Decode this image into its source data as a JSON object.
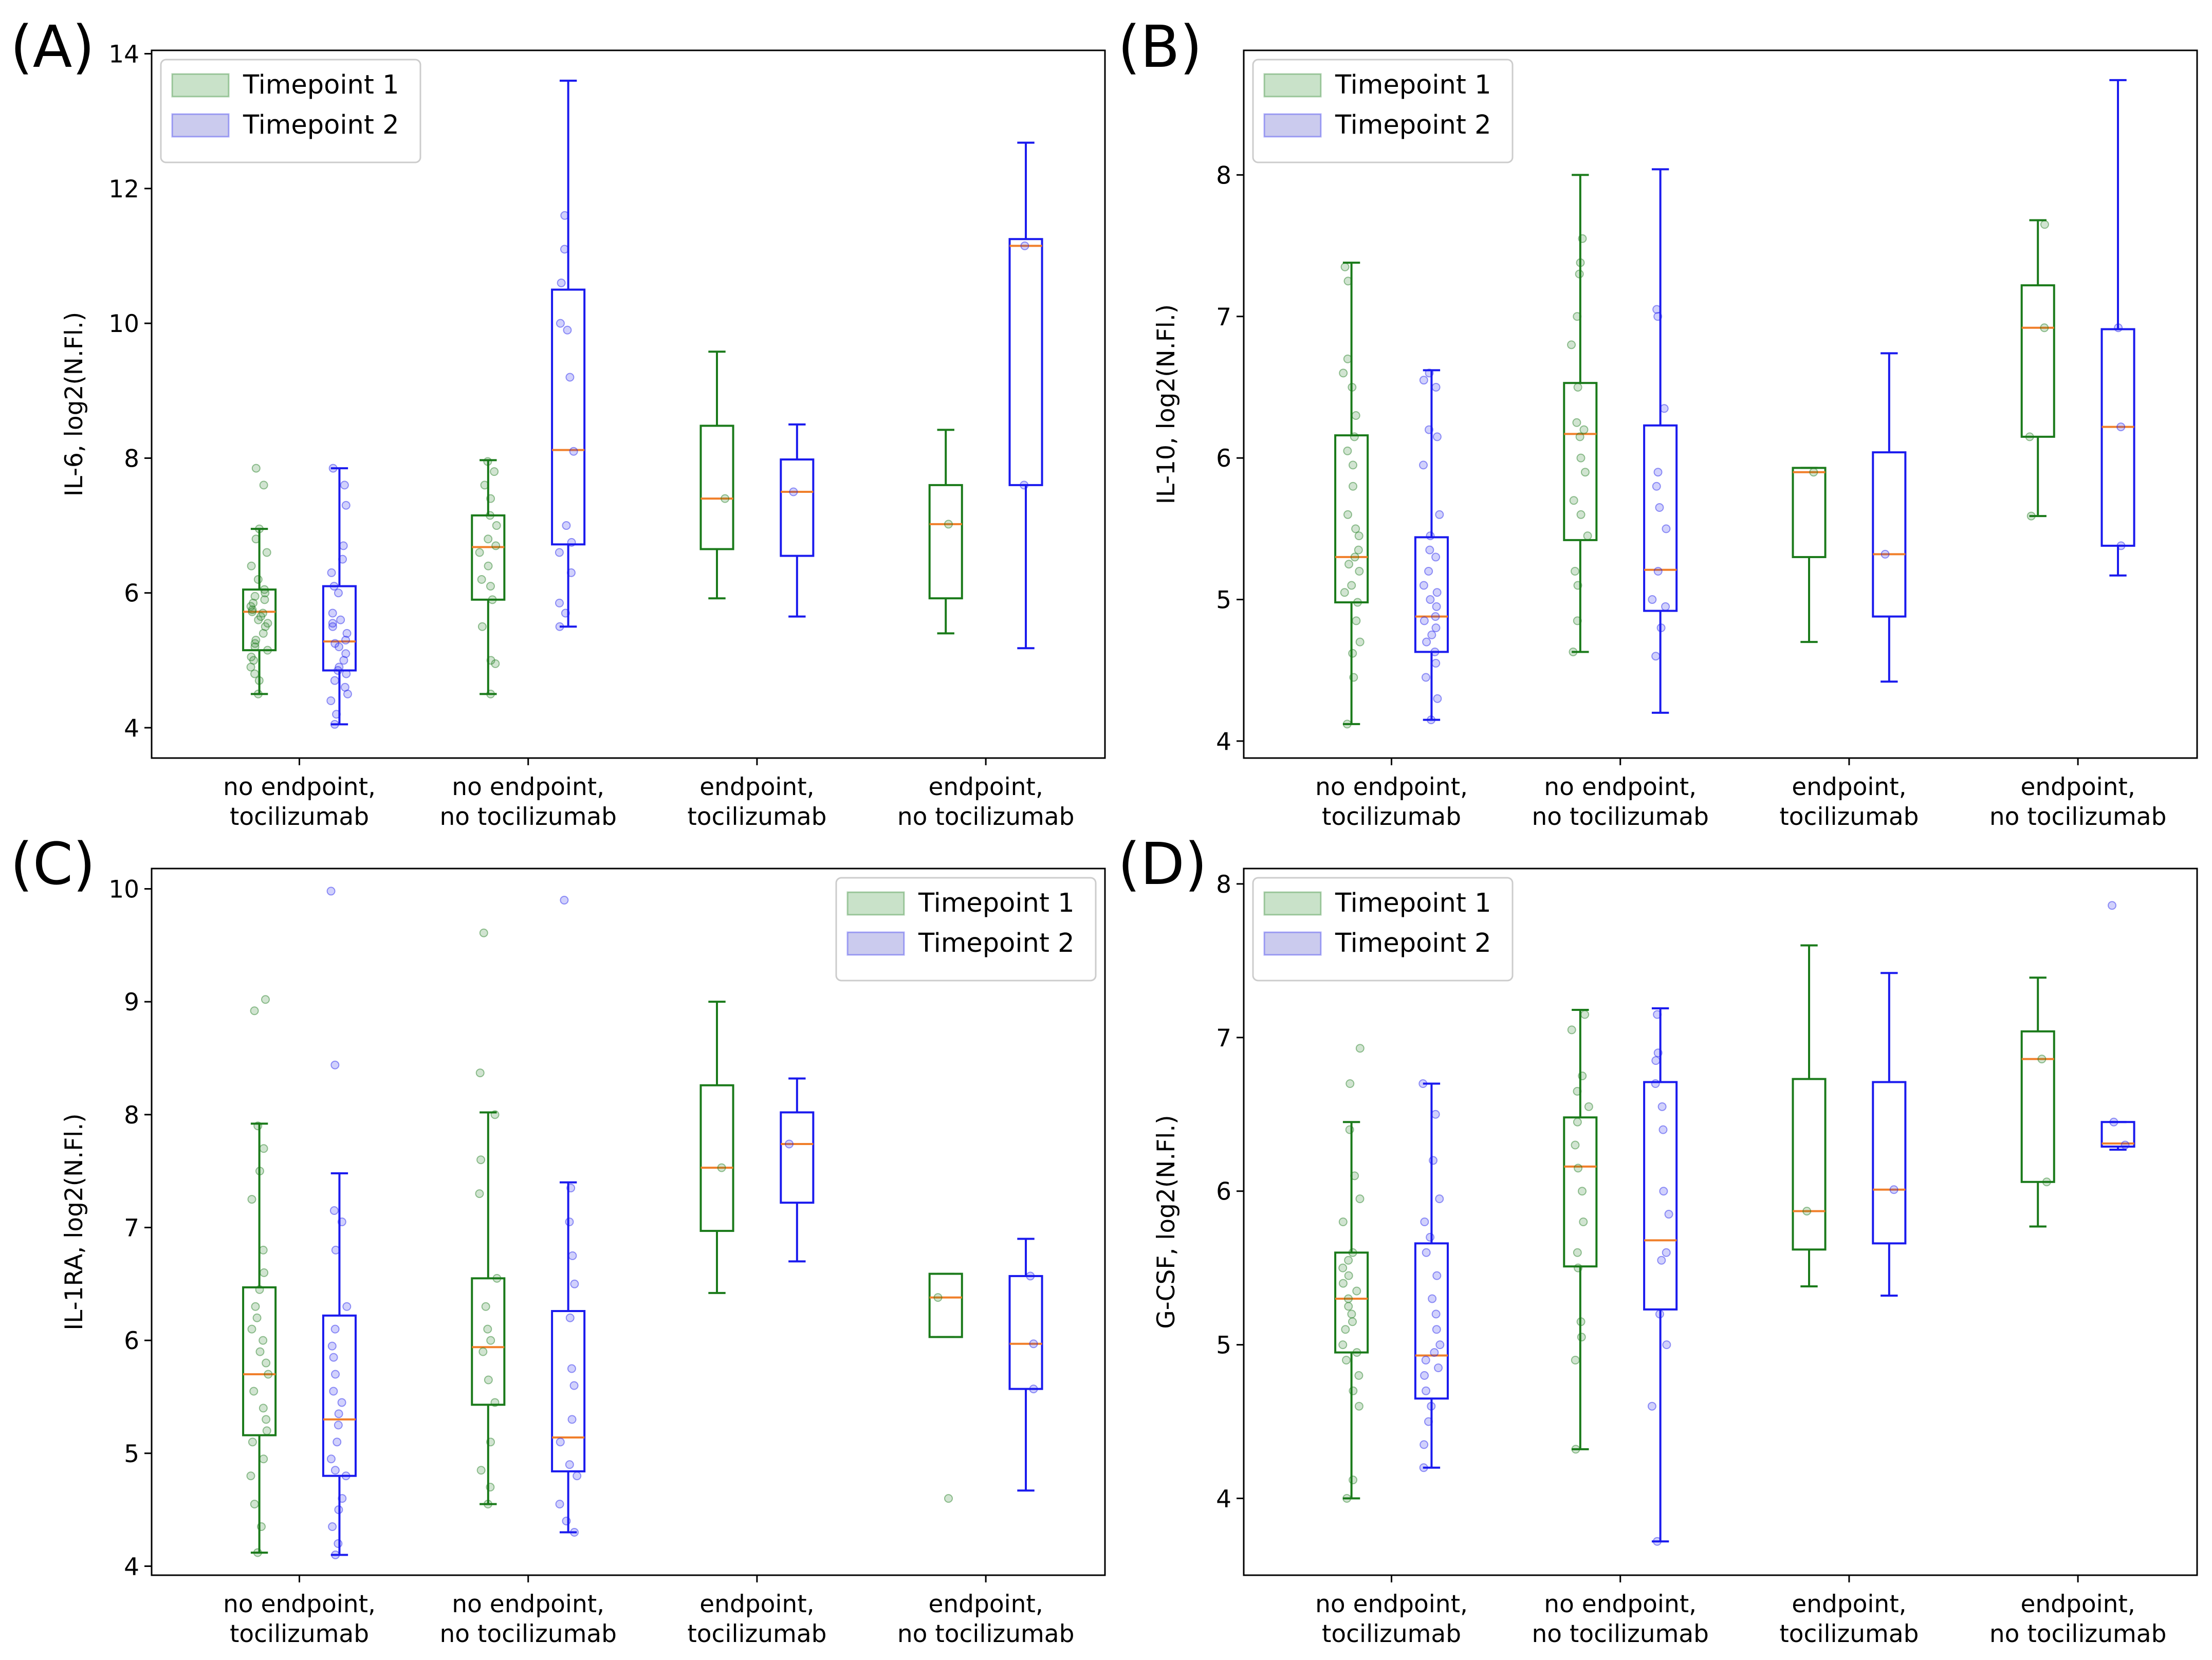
{
  "colors": {
    "timepoint1": "#1a7a1a",
    "timepoint2": "#1a1aee",
    "timepoint1_fill": "#c9e2c9",
    "timepoint2_fill": "#cbcbee",
    "median": "#f07f2a",
    "frame": "#000000"
  },
  "chart_data": [
    {
      "type": "box",
      "panel_label": "(A)",
      "ylabel": "IL-6, log2(N.Fl.)",
      "ylim": [
        3.55,
        14.05
      ],
      "yticks": [
        4,
        6,
        8,
        10,
        12,
        14
      ],
      "categories": [
        "no endpoint,\ntocilizumab",
        "no endpoint,\nno tocilizumab",
        "endpoint,\ntocilizumab",
        "endpoint,\nno tocilizumab"
      ],
      "legend": {
        "position": "upper-left",
        "entries": [
          "Timepoint 1",
          "Timepoint 2"
        ]
      },
      "series": [
        {
          "name": "Timepoint 1",
          "boxes": [
            {
              "whislo": 4.5,
              "q1": 5.15,
              "med": 5.72,
              "q3": 6.05,
              "whishi": 6.95,
              "fliers": [
                7.85,
                7.6
              ],
              "points": [
                4.5,
                4.7,
                4.8,
                4.9,
                5.0,
                5.05,
                5.15,
                5.2,
                5.25,
                5.3,
                5.4,
                5.5,
                5.55,
                5.6,
                5.65,
                5.7,
                5.72,
                5.75,
                5.8,
                5.85,
                5.9,
                5.95,
                6.0,
                6.05,
                6.2,
                6.4,
                6.6,
                6.8,
                6.95,
                7.6,
                7.85
              ]
            },
            {
              "whislo": 4.5,
              "q1": 5.9,
              "med": 6.68,
              "q3": 7.15,
              "whishi": 7.97,
              "points": [
                4.5,
                4.95,
                5.0,
                5.5,
                5.9,
                6.1,
                6.2,
                6.4,
                6.6,
                6.7,
                6.8,
                7.0,
                7.15,
                7.4,
                7.6,
                7.8,
                7.95
              ]
            },
            {
              "whislo": 5.92,
              "q1": 6.65,
              "med": 7.4,
              "q3": 8.48,
              "whishi": 9.58,
              "points": [
                7.4
              ]
            },
            {
              "whislo": 5.4,
              "q1": 5.92,
              "med": 7.02,
              "q3": 7.6,
              "whishi": 8.42,
              "points": [
                7.02
              ]
            }
          ]
        },
        {
          "name": "Timepoint 2",
          "boxes": [
            {
              "whislo": 4.05,
              "q1": 4.85,
              "med": 5.28,
              "q3": 6.1,
              "whishi": 7.85,
              "points": [
                4.05,
                4.2,
                4.4,
                4.5,
                4.6,
                4.7,
                4.8,
                4.85,
                4.9,
                5.0,
                5.1,
                5.2,
                5.25,
                5.3,
                5.4,
                5.5,
                5.55,
                5.6,
                5.7,
                6.0,
                6.1,
                6.3,
                6.5,
                6.7,
                7.3,
                7.6,
                7.85
              ]
            },
            {
              "whislo": 5.5,
              "q1": 6.72,
              "med": 8.12,
              "q3": 10.5,
              "whishi": 13.6,
              "points": [
                5.5,
                5.7,
                5.85,
                6.3,
                6.6,
                6.75,
                7.0,
                8.1,
                9.2,
                9.9,
                10.0,
                10.6,
                11.1,
                11.6
              ]
            },
            {
              "whislo": 5.65,
              "q1": 6.55,
              "med": 7.5,
              "q3": 7.98,
              "whishi": 8.5,
              "points": [
                7.5
              ]
            },
            {
              "whislo": 5.18,
              "q1": 7.6,
              "med": 11.15,
              "q3": 11.25,
              "whishi": 12.68,
              "points": [
                7.6,
                11.15
              ]
            }
          ]
        }
      ]
    },
    {
      "type": "box",
      "panel_label": "(B)",
      "ylabel": "IL-10, log2(N.Fl.)",
      "ylim": [
        3.88,
        8.88
      ],
      "yticks": [
        4,
        5,
        6,
        7,
        8
      ],
      "categories": [
        "no endpoint,\ntocilizumab",
        "no endpoint,\nno tocilizumab",
        "endpoint,\ntocilizumab",
        "endpoint,\nno tocilizumab"
      ],
      "legend": {
        "position": "upper-left",
        "entries": [
          "Timepoint 1",
          "Timepoint 2"
        ]
      },
      "series": [
        {
          "name": "Timepoint 1",
          "boxes": [
            {
              "whislo": 4.12,
              "q1": 4.98,
              "med": 5.3,
              "q3": 6.16,
              "whishi": 7.38,
              "points": [
                4.12,
                4.45,
                4.62,
                4.7,
                4.85,
                4.98,
                5.05,
                5.1,
                5.2,
                5.25,
                5.3,
                5.35,
                5.45,
                5.5,
                5.6,
                5.8,
                5.95,
                6.05,
                6.15,
                6.3,
                6.5,
                6.6,
                6.7,
                7.25,
                7.35
              ]
            },
            {
              "whislo": 4.63,
              "q1": 5.42,
              "med": 6.17,
              "q3": 6.53,
              "whishi": 8.0,
              "points": [
                4.63,
                4.85,
                5.1,
                5.2,
                5.45,
                5.6,
                5.7,
                5.9,
                6.0,
                6.15,
                6.2,
                6.25,
                6.5,
                6.8,
                7.0,
                7.3,
                7.38,
                7.55
              ]
            },
            {
              "whislo": 4.7,
              "q1": 5.3,
              "med": 5.9,
              "q3": 5.93,
              "whishi": 5.93,
              "points": [
                5.9
              ]
            },
            {
              "whislo": 5.59,
              "q1": 6.15,
              "med": 6.92,
              "q3": 7.22,
              "whishi": 7.68,
              "points": [
                5.59,
                6.15,
                6.92,
                7.65
              ]
            }
          ]
        },
        {
          "name": "Timepoint 2",
          "boxes": [
            {
              "whislo": 4.15,
              "q1": 4.63,
              "med": 4.88,
              "q3": 5.44,
              "whishi": 6.62,
              "points": [
                4.15,
                4.3,
                4.45,
                4.55,
                4.63,
                4.7,
                4.75,
                4.8,
                4.85,
                4.88,
                4.95,
                5.0,
                5.05,
                5.1,
                5.2,
                5.3,
                5.35,
                5.45,
                5.6,
                5.95,
                6.15,
                6.2,
                6.5,
                6.55,
                6.6
              ]
            },
            {
              "whislo": 4.2,
              "q1": 4.92,
              "med": 5.21,
              "q3": 6.23,
              "whishi": 8.04,
              "points": [
                4.6,
                4.8,
                4.95,
                5.0,
                5.2,
                5.5,
                5.65,
                5.8,
                5.9,
                6.35,
                7.0,
                7.05
              ]
            },
            {
              "whislo": 4.42,
              "q1": 4.88,
              "med": 5.32,
              "q3": 6.04,
              "whishi": 6.74,
              "points": [
                5.32
              ]
            },
            {
              "whislo": 5.17,
              "q1": 5.38,
              "med": 6.22,
              "q3": 6.91,
              "whishi": 8.67,
              "points": [
                5.38,
                6.22,
                6.92
              ]
            }
          ]
        }
      ]
    },
    {
      "type": "box",
      "panel_label": "(C)",
      "ylabel": "IL-1RA, log2(N.Fl.)",
      "ylim": [
        3.92,
        10.18
      ],
      "yticks": [
        4,
        5,
        6,
        7,
        8,
        9,
        10
      ],
      "categories": [
        "no endpoint,\ntocilizumab",
        "no endpoint,\nno tocilizumab",
        "endpoint,\ntocilizumab",
        "endpoint,\nno tocilizumab"
      ],
      "legend": {
        "position": "upper-right",
        "entries": [
          "Timepoint 1",
          "Timepoint 2"
        ]
      },
      "series": [
        {
          "name": "Timepoint 1",
          "boxes": [
            {
              "whislo": 4.12,
              "q1": 5.16,
              "med": 5.7,
              "q3": 6.47,
              "whishi": 7.92,
              "fliers": [
                9.02,
                8.92
              ],
              "points": [
                4.12,
                4.35,
                4.55,
                4.8,
                4.95,
                5.1,
                5.2,
                5.3,
                5.4,
                5.55,
                5.7,
                5.8,
                5.9,
                6.0,
                6.1,
                6.2,
                6.3,
                6.45,
                6.6,
                6.8,
                7.25,
                7.5,
                7.7,
                7.9,
                8.92,
                9.02
              ]
            },
            {
              "whislo": 4.55,
              "q1": 5.43,
              "med": 5.94,
              "q3": 6.55,
              "whishi": 8.02,
              "fliers": [
                9.61,
                8.37
              ],
              "points": [
                4.55,
                4.7,
                4.85,
                5.1,
                5.45,
                5.65,
                5.9,
                6.0,
                6.1,
                6.3,
                6.55,
                7.3,
                7.6,
                8.0,
                8.37,
                9.61
              ]
            },
            {
              "whislo": 6.42,
              "q1": 6.97,
              "med": 7.53,
              "q3": 8.26,
              "whishi": 9.0,
              "points": [
                7.53
              ]
            },
            {
              "whislo": 6.03,
              "q1": 6.03,
              "med": 6.38,
              "q3": 6.59,
              "whishi": 6.59,
              "fliers": [
                4.6
              ],
              "points": [
                6.38,
                4.6
              ]
            }
          ]
        },
        {
          "name": "Timepoint 2",
          "boxes": [
            {
              "whislo": 4.1,
              "q1": 4.8,
              "med": 5.3,
              "q3": 6.22,
              "whishi": 7.48,
              "fliers": [
                9.98,
                8.44
              ],
              "points": [
                4.1,
                4.2,
                4.35,
                4.5,
                4.6,
                4.8,
                4.85,
                4.95,
                5.1,
                5.25,
                5.35,
                5.45,
                5.55,
                5.7,
                5.85,
                5.95,
                6.1,
                6.3,
                6.8,
                7.05,
                7.15,
                8.44,
                9.98
              ]
            },
            {
              "whislo": 4.3,
              "q1": 4.84,
              "med": 5.14,
              "q3": 6.26,
              "whishi": 7.4,
              "fliers": [
                9.9
              ],
              "points": [
                4.3,
                4.4,
                4.55,
                4.8,
                4.9,
                5.1,
                5.3,
                5.6,
                5.75,
                6.2,
                6.5,
                6.75,
                7.05,
                7.35,
                9.9
              ]
            },
            {
              "whislo": 6.7,
              "q1": 7.22,
              "med": 7.74,
              "q3": 8.02,
              "whishi": 8.32,
              "points": [
                7.74
              ]
            },
            {
              "whislo": 4.67,
              "q1": 5.57,
              "med": 5.97,
              "q3": 6.57,
              "whishi": 6.9,
              "points": [
                5.57,
                5.97,
                6.57
              ]
            }
          ]
        }
      ]
    },
    {
      "type": "box",
      "panel_label": "(D)",
      "ylabel": "G-CSF, log2(N.Fl.)",
      "ylim": [
        3.5,
        8.1
      ],
      "yticks": [
        4,
        5,
        6,
        7,
        8
      ],
      "categories": [
        "no endpoint,\ntocilizumab",
        "no endpoint,\nno tocilizumab",
        "endpoint,\ntocilizumab",
        "endpoint,\nno tocilizumab"
      ],
      "legend": {
        "position": "upper-left",
        "entries": [
          "Timepoint 1",
          "Timepoint 2"
        ]
      },
      "series": [
        {
          "name": "Timepoint 1",
          "boxes": [
            {
              "whislo": 4.0,
              "q1": 4.95,
              "med": 5.3,
              "q3": 5.6,
              "whishi": 6.45,
              "fliers": [
                6.93,
                6.7
              ],
              "points": [
                4.0,
                4.12,
                4.6,
                4.7,
                4.8,
                4.9,
                4.95,
                5.0,
                5.1,
                5.15,
                5.2,
                5.25,
                5.3,
                5.35,
                5.4,
                5.45,
                5.5,
                5.55,
                5.6,
                5.8,
                5.95,
                6.1,
                6.4,
                6.7,
                6.93
              ]
            },
            {
              "whislo": 4.32,
              "q1": 5.51,
              "med": 6.16,
              "q3": 6.48,
              "whishi": 7.18,
              "points": [
                4.32,
                4.9,
                5.05,
                5.15,
                5.5,
                5.6,
                5.8,
                6.0,
                6.15,
                6.3,
                6.45,
                6.55,
                6.65,
                6.75,
                7.05,
                7.15
              ]
            },
            {
              "whislo": 5.38,
              "q1": 5.62,
              "med": 5.87,
              "q3": 6.73,
              "whishi": 7.6,
              "points": [
                5.87
              ]
            },
            {
              "whislo": 5.77,
              "q1": 6.06,
              "med": 6.86,
              "q3": 7.04,
              "whishi": 7.39,
              "points": [
                6.06,
                6.86
              ]
            }
          ]
        },
        {
          "name": "Timepoint 2",
          "boxes": [
            {
              "whislo": 4.2,
              "q1": 4.65,
              "med": 4.93,
              "q3": 5.66,
              "whishi": 6.7,
              "points": [
                4.2,
                4.35,
                4.5,
                4.6,
                4.7,
                4.8,
                4.85,
                4.9,
                4.95,
                5.0,
                5.1,
                5.2,
                5.3,
                5.45,
                5.6,
                5.7,
                5.8,
                5.95,
                6.2,
                6.5,
                6.7
              ]
            },
            {
              "whislo": 3.72,
              "q1": 5.23,
              "med": 5.68,
              "q3": 6.71,
              "whishi": 7.19,
              "points": [
                3.72,
                4.6,
                5.0,
                5.2,
                5.55,
                5.6,
                5.85,
                6.0,
                6.4,
                6.55,
                6.7,
                6.85,
                6.9,
                7.15
              ]
            },
            {
              "whislo": 5.32,
              "q1": 5.66,
              "med": 6.01,
              "q3": 6.71,
              "whishi": 7.42,
              "points": [
                6.01
              ]
            },
            {
              "whislo": 6.27,
              "q1": 6.29,
              "med": 6.31,
              "q3": 6.45,
              "whishi": 6.45,
              "fliers": [
                7.86
              ],
              "points": [
                6.3,
                6.45,
                7.86
              ]
            }
          ]
        }
      ]
    }
  ]
}
